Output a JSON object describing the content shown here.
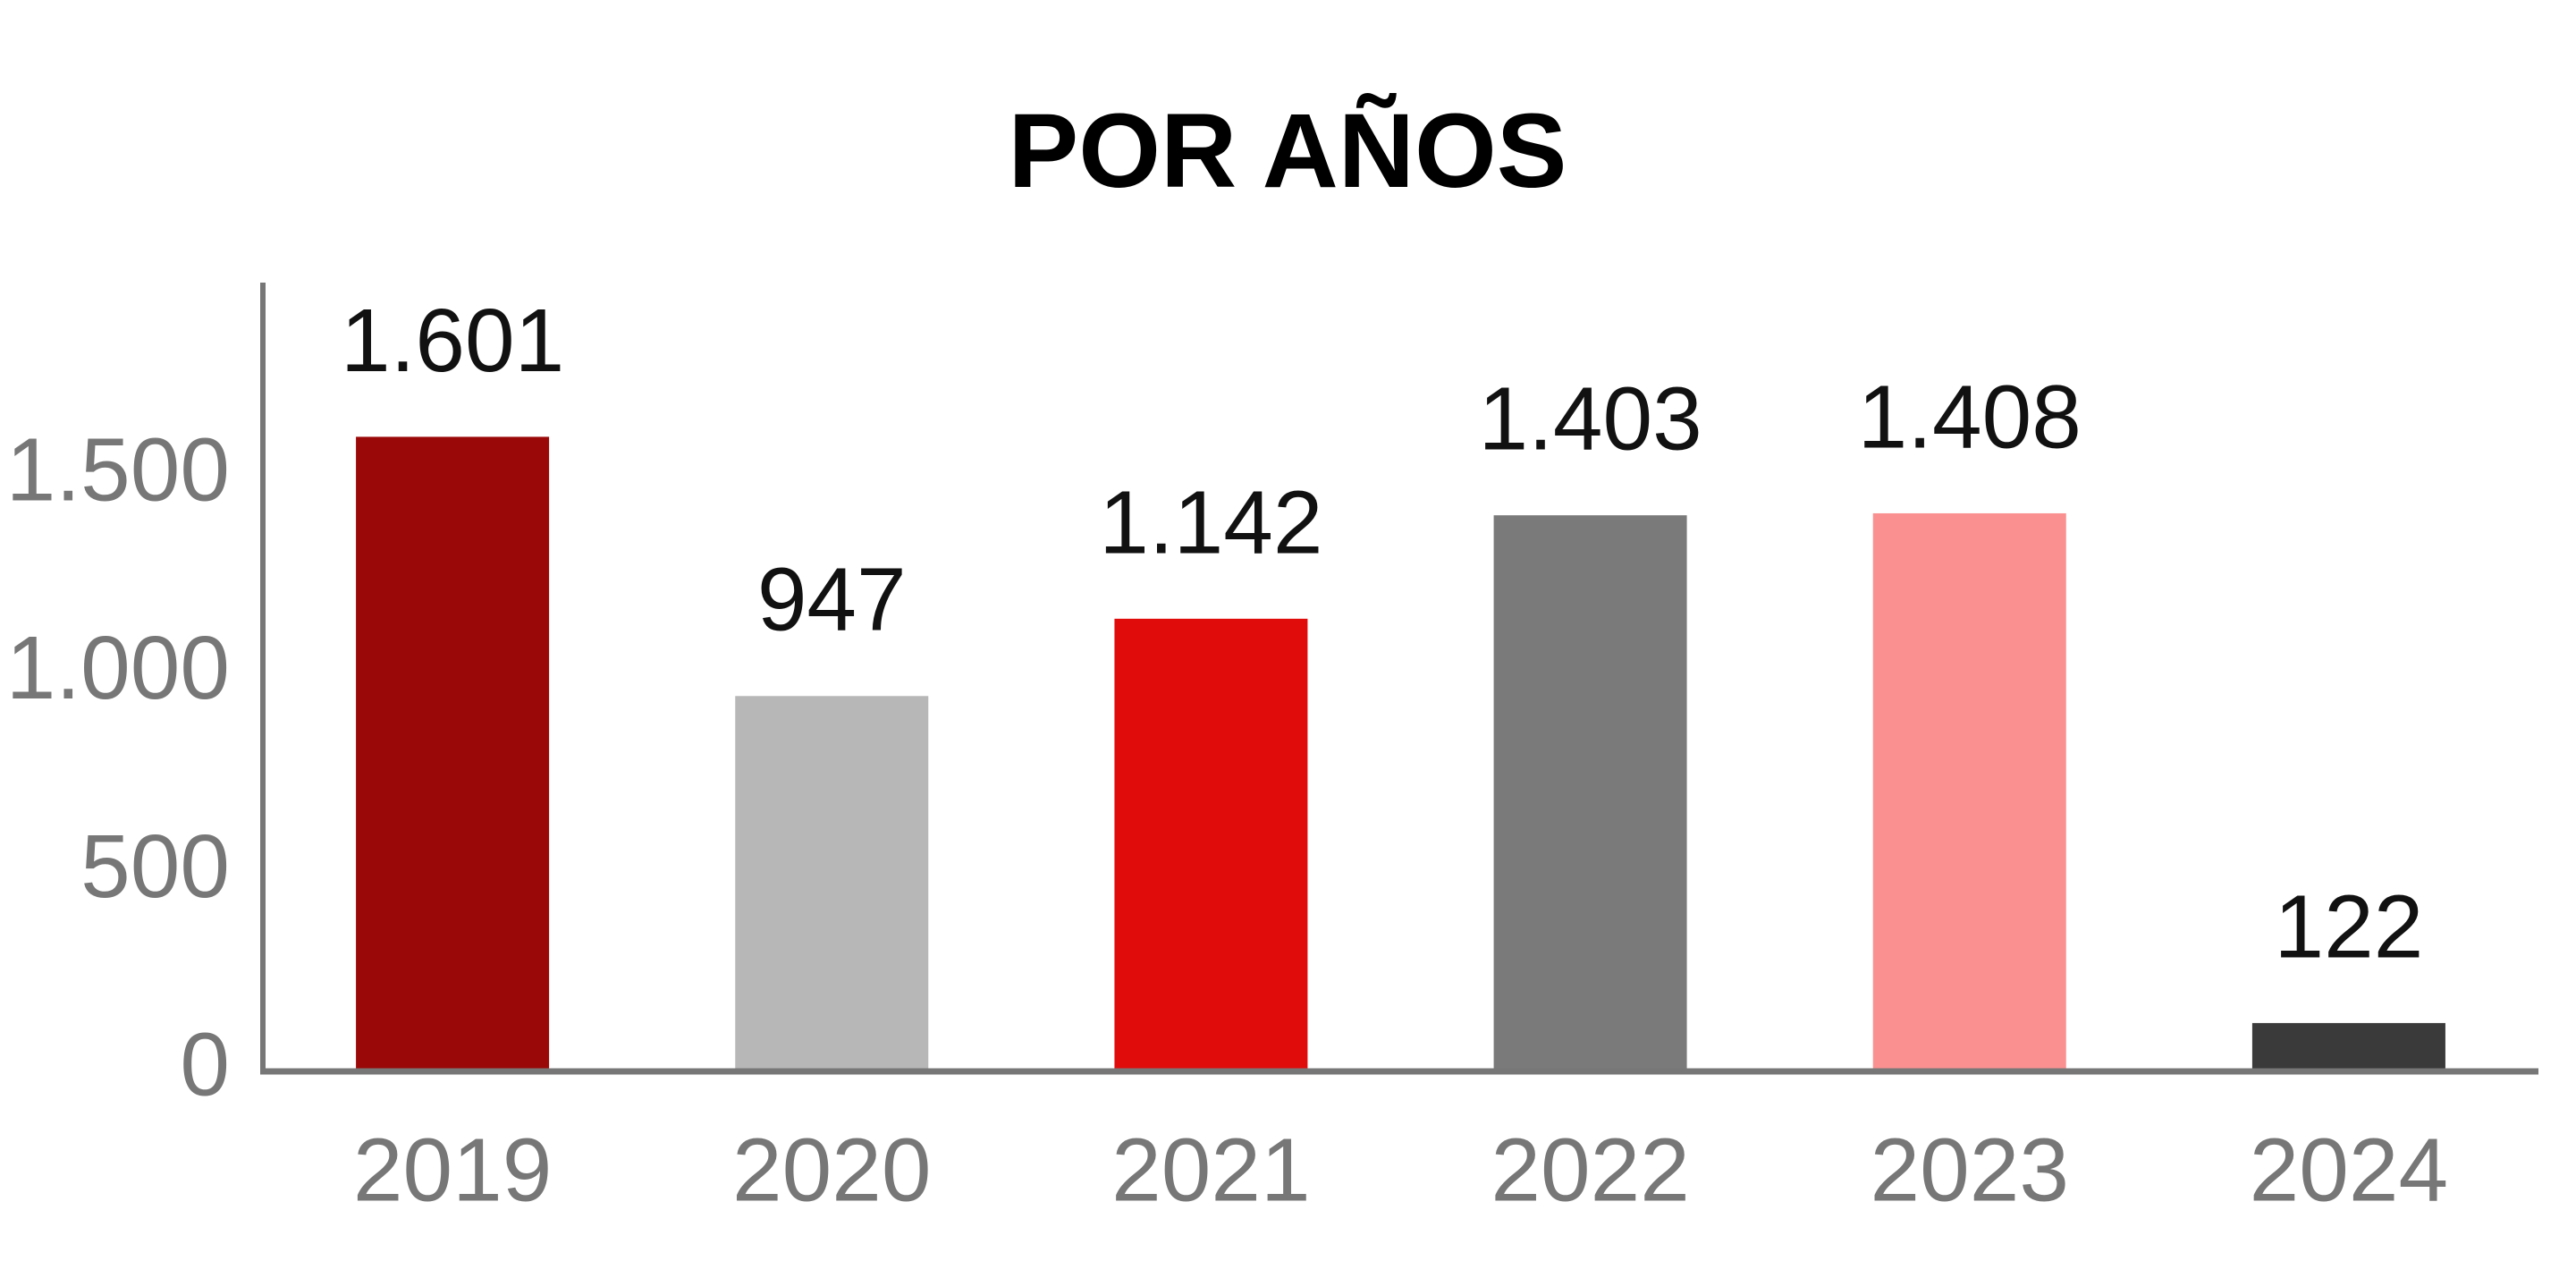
{
  "chart_data": {
    "type": "bar",
    "title": "POR AÑOS",
    "categories": [
      "2019",
      "2020",
      "2021",
      "2022",
      "2023",
      "2024"
    ],
    "values": [
      1601,
      947,
      1142,
      1403,
      1408,
      122
    ],
    "value_labels": [
      "1.601",
      "947",
      "1.142",
      "1.403",
      "1.408",
      "122"
    ],
    "colors": [
      "#9b0808",
      "#b7b7b7",
      "#e00c0c",
      "#7a7a7a",
      "#fa9090",
      "#3a3a3a"
    ],
    "ylim": [
      0,
      1990
    ],
    "yticks": [
      0,
      500,
      {
        "value": 1000,
        "label": "1.000"
      },
      {
        "value": 1500,
        "label": "1.500"
      }
    ],
    "grid": false
  }
}
